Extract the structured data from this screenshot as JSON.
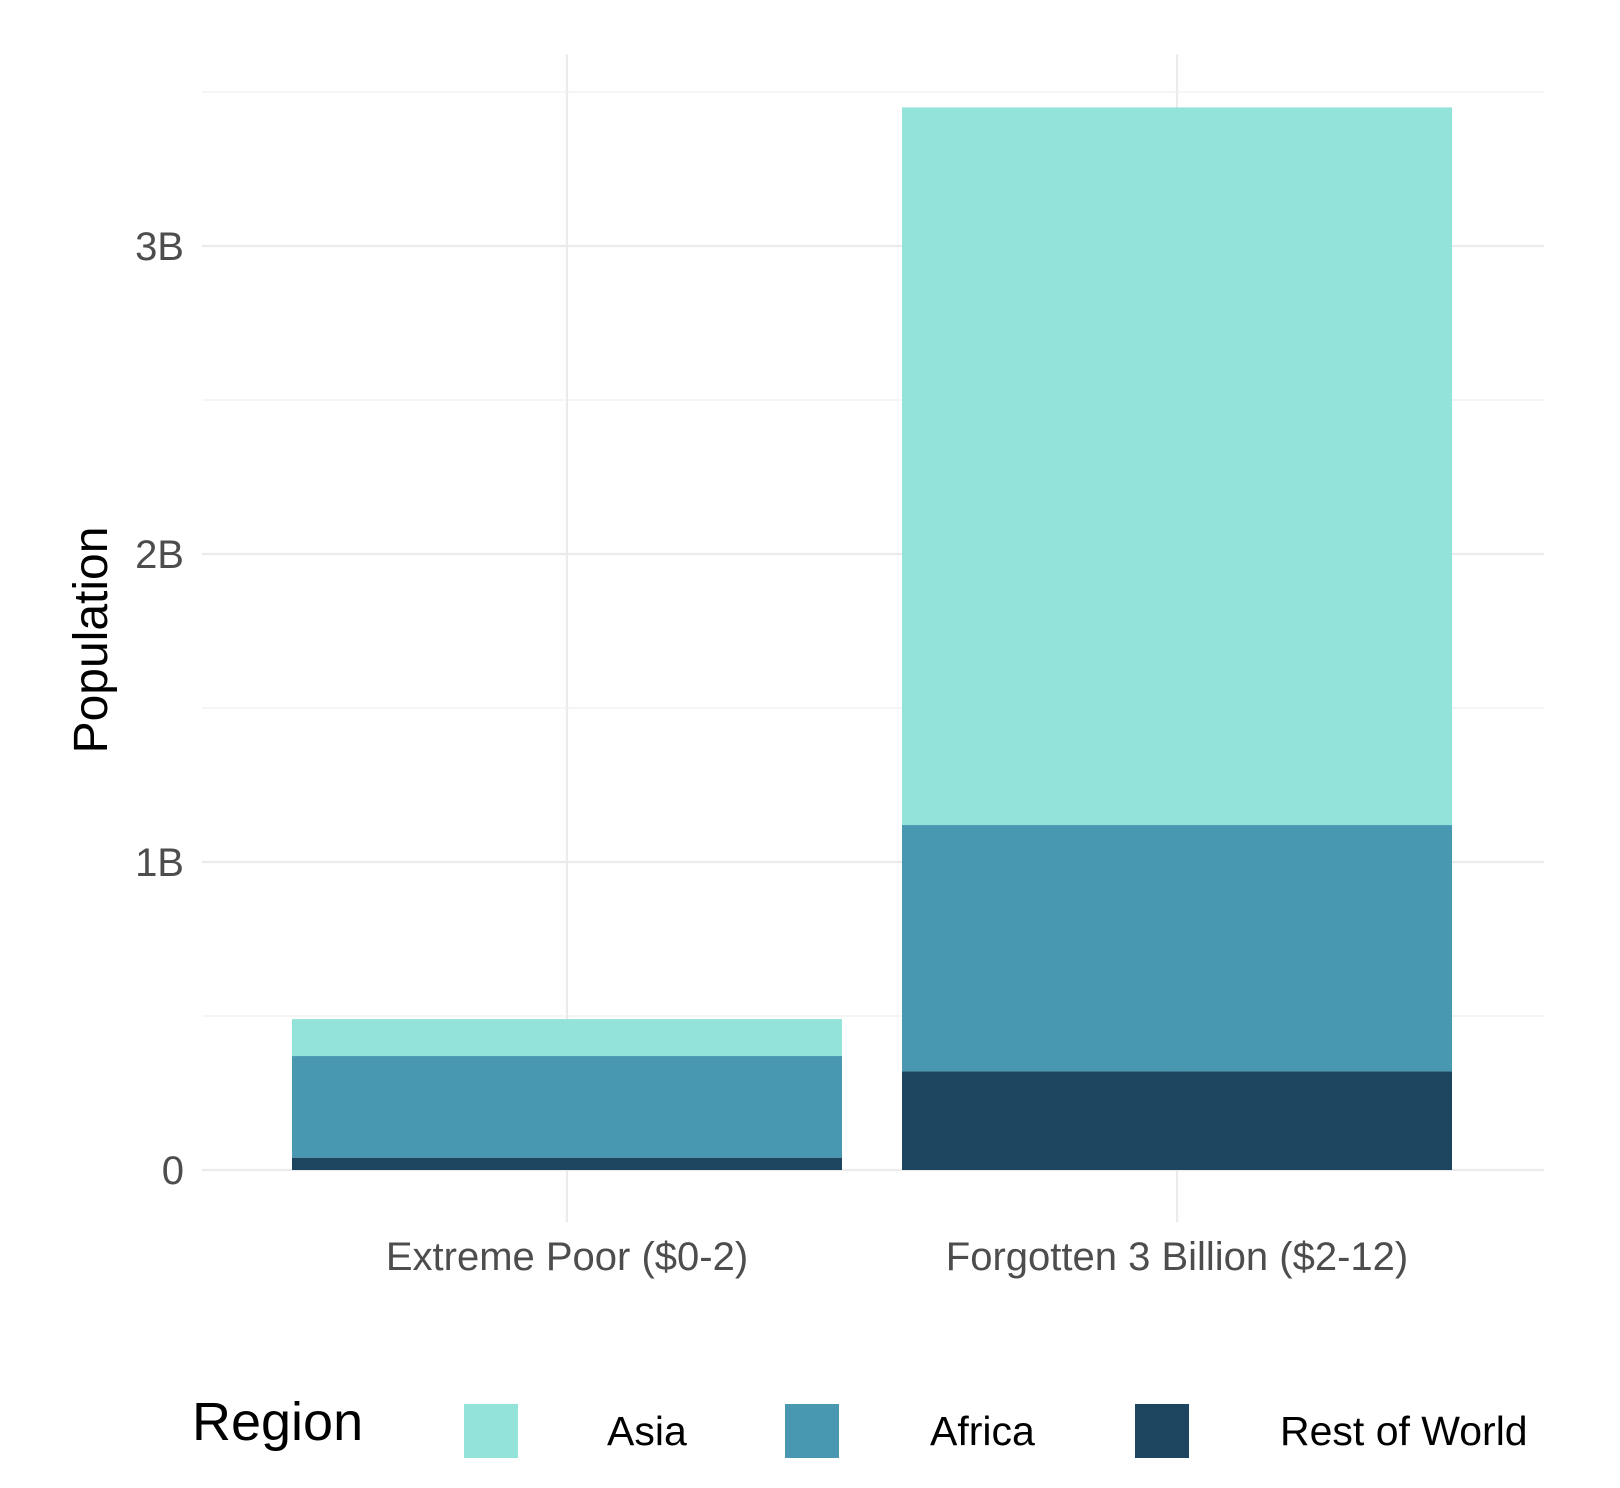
{
  "chart_data": {
    "type": "bar",
    "stacked": true,
    "categories": [
      "Extreme Poor ($0-2)",
      "Forgotten 3 Billion ($2-12)"
    ],
    "series": [
      {
        "name": "Rest of World",
        "color": "#1e4560",
        "values": [
          0.04,
          0.32
        ]
      },
      {
        "name": "Africa",
        "color": "#4898b2",
        "values": [
          0.33,
          0.8
        ]
      },
      {
        "name": "Asia",
        "color": "#94e3da",
        "values": [
          0.12,
          2.33
        ]
      }
    ],
    "xlabel": "",
    "ylabel": "Population",
    "yticks": [
      0,
      1,
      2,
      3
    ],
    "ytick_labels": [
      "0",
      "1B",
      "2B",
      "3B"
    ],
    "ylim": [
      -0.09,
      3.62
    ],
    "y_unit": "billions",
    "grid": true,
    "legend": {
      "title": "Region",
      "position": "bottom",
      "items": [
        "Asia",
        "Africa",
        "Rest of World"
      ]
    }
  }
}
